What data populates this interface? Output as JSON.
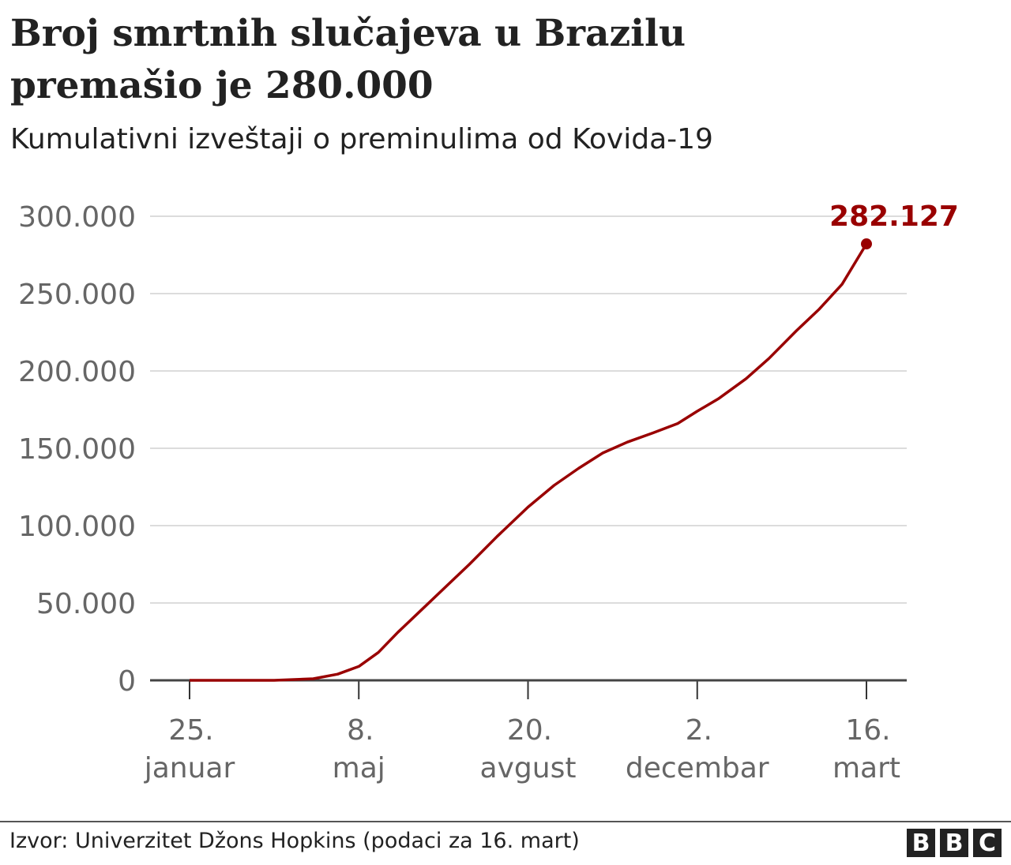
{
  "chart_data": {
    "type": "line",
    "title": "Broj smrtnih slučajeva u Brazilu premašio je 280.000",
    "subtitle": "Kumulativni izveštaji o preminulima od Kovida-19",
    "xlabel": "",
    "ylabel": "",
    "ylim": [
      0,
      300000
    ],
    "yticks": [
      0,
      50000,
      100000,
      150000,
      200000,
      250000,
      300000
    ],
    "ytick_labels": [
      "0",
      "50.000",
      "100.000",
      "150.000",
      "200.000",
      "250.000",
      "300.000"
    ],
    "xticks": [
      "2020-01-25",
      "2020-05-08",
      "2020-08-20",
      "2020-12-02",
      "2021-03-16"
    ],
    "xtick_labels": [
      [
        "25.",
        "januar"
      ],
      [
        "8.",
        "maj"
      ],
      [
        "20.",
        "avgust"
      ],
      [
        "2.",
        "decembar"
      ],
      [
        "16.",
        "mart"
      ]
    ],
    "grid": true,
    "line_color": "#990000",
    "series": [
      {
        "x": [
          "2020-01-25",
          "2020-03-17",
          "2020-04-10",
          "2020-04-25",
          "2020-05-08",
          "2020-05-20",
          "2020-06-01",
          "2020-06-15",
          "2020-07-01",
          "2020-07-15",
          "2020-08-01",
          "2020-08-20",
          "2020-09-05",
          "2020-09-20",
          "2020-10-05",
          "2020-10-20",
          "2020-11-05",
          "2020-11-20",
          "2020-12-02",
          "2020-12-15",
          "2021-01-01",
          "2021-01-15",
          "2021-02-01",
          "2021-02-15",
          "2021-03-01",
          "2021-03-16"
        ],
        "values": [
          0,
          0,
          1000,
          4000,
          9000,
          18000,
          31000,
          45000,
          61000,
          75000,
          93000,
          112000,
          126000,
          137000,
          147000,
          154000,
          160000,
          166000,
          174000,
          182000,
          195000,
          208000,
          226000,
          240000,
          256000,
          282127
        ]
      }
    ],
    "annotation": "282.127"
  },
  "footer": {
    "source": "Izvor: Univerzitet Džons Hopkins (podaci za 16. mart)",
    "logo": [
      "B",
      "B",
      "C"
    ]
  }
}
